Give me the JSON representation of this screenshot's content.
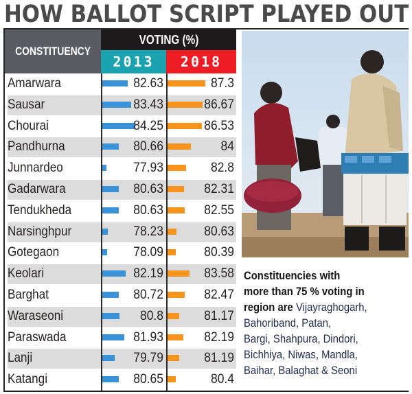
{
  "title": "HOW BALLOT SCRIPT PLAYED OUT",
  "table": {
    "header_constituency": "CONSTITUENCY",
    "header_voting": "VOTING (%)",
    "header_year1": "2013",
    "header_year2": "2018",
    "colors": {
      "year1_header": "#1aa3ae",
      "year2_header": "#ee1c25",
      "year1_bar": "#3a93d8",
      "year2_bar": "#f7941d",
      "voting_header": "#1d1a1c",
      "constituency_header": "#5a5a62"
    },
    "rows": [
      {
        "name": "Amarwara",
        "v2013": "82.63",
        "v2018": "87.3"
      },
      {
        "name": "Sausar",
        "v2013": "83.43",
        "v2018": "86.67"
      },
      {
        "name": "Chourai",
        "v2013": "84.25",
        "v2018": "86.53"
      },
      {
        "name": "Pandhurna",
        "v2013": "80.66",
        "v2018": "84"
      },
      {
        "name": "Junnardeo",
        "v2013": "77.93",
        "v2018": "82.8"
      },
      {
        "name": "Gadarwara",
        "v2013": "80.63",
        "v2018": "82.31"
      },
      {
        "name": "Tendukheda",
        "v2013": "80.63",
        "v2018": "82.55"
      },
      {
        "name": "Narsinghpur",
        "v2013": "78.23",
        "v2018": "80.63"
      },
      {
        "name": "Gotegaon",
        "v2013": "78.09",
        "v2018": "80.39"
      },
      {
        "name": "Keolari",
        "v2013": "82.19",
        "v2018": "83.58"
      },
      {
        "name": "Barghat",
        "v2013": "80.72",
        "v2018": "82.47"
      },
      {
        "name": "Waraseoni",
        "v2013": "80.8",
        "v2018": "81.17"
      },
      {
        "name": "Paraswada",
        "v2013": "81.93",
        "v2018": "82.19"
      },
      {
        "name": "Lanji",
        "v2013": "79.79",
        "v2018": "81.19"
      },
      {
        "name": "Katangi",
        "v2013": "80.65",
        "v2018": "80.4"
      }
    ]
  },
  "photo": {
    "description": "polling officials carrying EVM boxes"
  },
  "caption": {
    "bold_lines": [
      "Constituencies with",
      "more than 75 % voting in",
      "region are "
    ],
    "lines": [
      "Vijayraghogarh,",
      "Bahoriband, Patan,",
      "Bargi, Shahpura, Dindori,",
      "Bichhiya, Niwas, Mandla,",
      "Baihar, Balaghat & Seoni"
    ]
  },
  "chart_data": {
    "type": "bar",
    "title": "HOW BALLOT SCRIPT PLAYED OUT",
    "xlabel": "CONSTITUENCY",
    "ylabel": "VOTING (%)",
    "categories": [
      "Amarwara",
      "Sausar",
      "Chourai",
      "Pandhurna",
      "Junnardeo",
      "Gadarwara",
      "Tendukheda",
      "Narsinghpur",
      "Gotegaon",
      "Keolari",
      "Barghat",
      "Waraseoni",
      "Paraswada",
      "Lanji",
      "Katangi"
    ],
    "series": [
      {
        "name": "2013",
        "color": "#3a93d8",
        "values": [
          82.63,
          83.43,
          84.25,
          80.66,
          77.93,
          80.63,
          80.63,
          78.23,
          78.09,
          82.19,
          80.72,
          80.8,
          81.93,
          79.79,
          80.65
        ]
      },
      {
        "name": "2018",
        "color": "#f7941d",
        "values": [
          87.3,
          86.67,
          86.53,
          84,
          82.8,
          82.31,
          82.55,
          80.63,
          80.39,
          83.58,
          82.47,
          81.17,
          82.19,
          81.19,
          80.4
        ]
      }
    ],
    "orientation": "horizontal",
    "legend_position": "table-header",
    "grid": false
  }
}
